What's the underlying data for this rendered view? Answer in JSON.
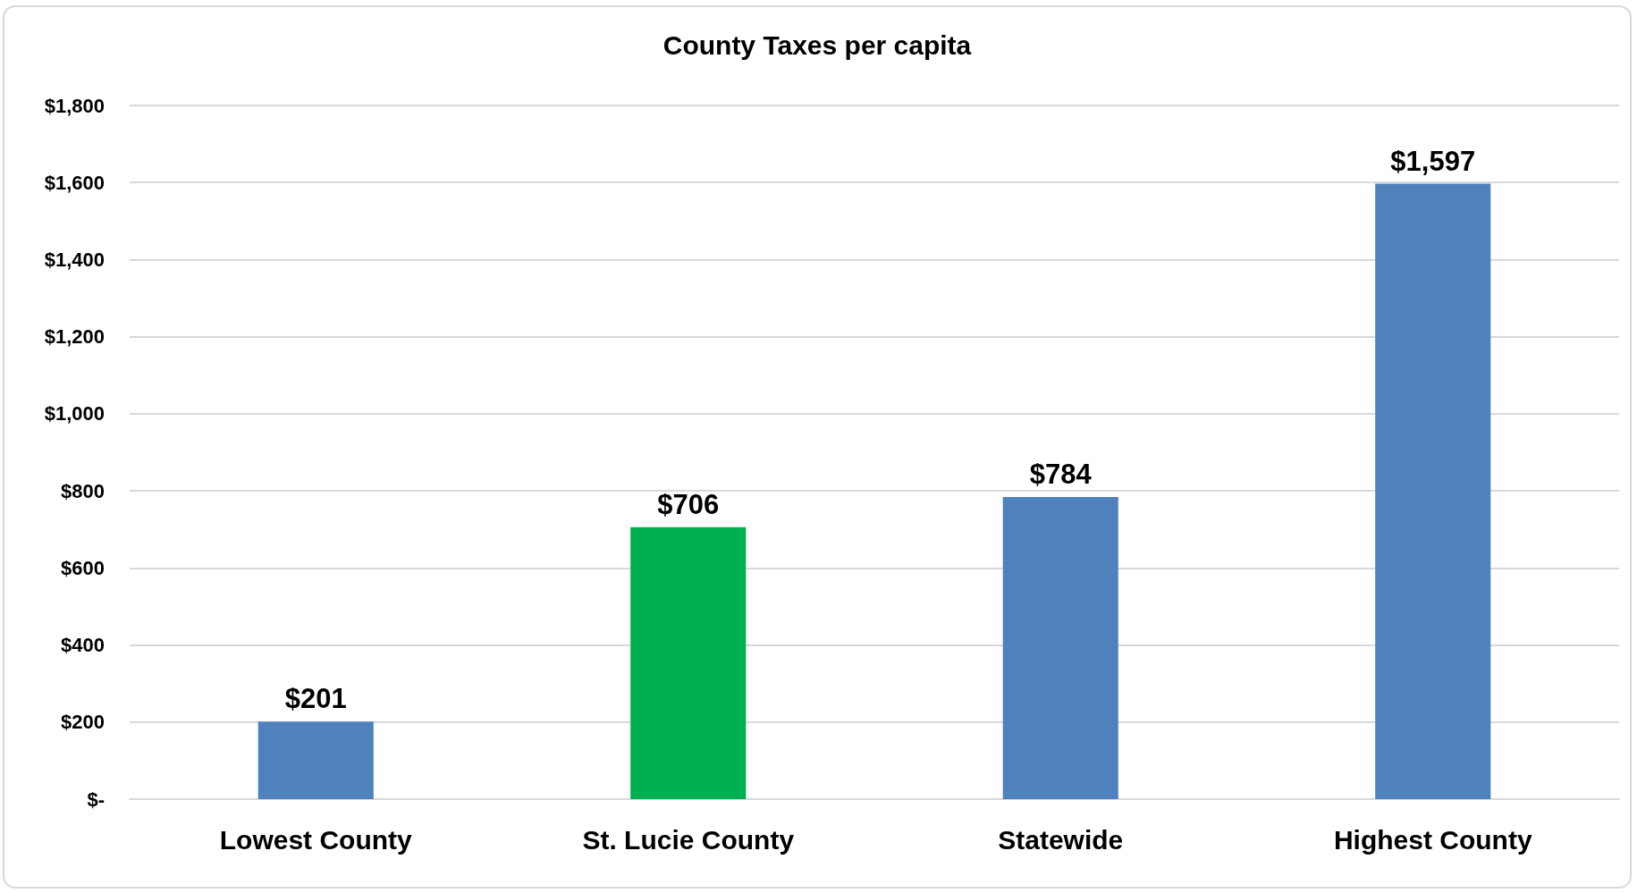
{
  "chart_data": {
    "type": "bar",
    "title": "County Taxes per capita",
    "categories": [
      "Lowest County",
      "St. Lucie County",
      "Statewide",
      "Highest County"
    ],
    "values": [
      201,
      706,
      784,
      1597
    ],
    "colors": [
      "#4f81bd",
      "#00b050",
      "#4f81bd",
      "#4f81bd"
    ],
    "value_labels": [
      "$201",
      "$706",
      "$784",
      "$1,597"
    ],
    "ylim": [
      0,
      1800
    ],
    "yticks": [
      {
        "value": 0,
        "label": "$-"
      },
      {
        "value": 200,
        "label": "$200"
      },
      {
        "value": 400,
        "label": "$400"
      },
      {
        "value": 600,
        "label": "$600"
      },
      {
        "value": 800,
        "label": "$800"
      },
      {
        "value": 1000,
        "label": "$1,000"
      },
      {
        "value": 1200,
        "label": "$1,200"
      },
      {
        "value": 1400,
        "label": "$1,400"
      },
      {
        "value": 1600,
        "label": "$1,600"
      },
      {
        "value": 1800,
        "label": "$1,800"
      }
    ],
    "grid": true
  }
}
